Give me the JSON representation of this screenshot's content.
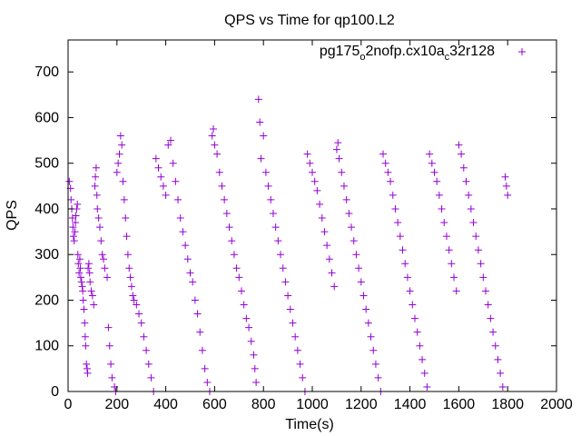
{
  "chart_data": {
    "type": "scatter",
    "title": "QPS vs Time for qp100.L2",
    "xlabel": "Time(s)",
    "ylabel": "QPS",
    "xlim": [
      0,
      2000
    ],
    "ylim": [
      0,
      770
    ],
    "xticks": [
      0,
      200,
      400,
      600,
      800,
      1000,
      1200,
      1400,
      1600,
      1800,
      2000
    ],
    "yticks": [
      0,
      100,
      200,
      300,
      400,
      500,
      600,
      700
    ],
    "grid": false,
    "legend_position": "top-right",
    "marker": "plus",
    "series_color": "#9400d3",
    "series": [
      {
        "name_parts": {
          "a": "pg175",
          "b": "o",
          "c": "2nofp.cx10a",
          "d": "c",
          "e": "32r128"
        },
        "points": [
          [
            5,
            460
          ],
          [
            10,
            445
          ],
          [
            12,
            420
          ],
          [
            15,
            400
          ],
          [
            18,
            380
          ],
          [
            20,
            360
          ],
          [
            22,
            340
          ],
          [
            25,
            330
          ],
          [
            28,
            350
          ],
          [
            30,
            370
          ],
          [
            32,
            385
          ],
          [
            35,
            400
          ],
          [
            38,
            410
          ],
          [
            40,
            300
          ],
          [
            42,
            280
          ],
          [
            45,
            260
          ],
          [
            48,
            290
          ],
          [
            50,
            270
          ],
          [
            52,
            250
          ],
          [
            55,
            240
          ],
          [
            58,
            230
          ],
          [
            60,
            220
          ],
          [
            62,
            200
          ],
          [
            65,
            180
          ],
          [
            68,
            150
          ],
          [
            70,
            120
          ],
          [
            72,
            100
          ],
          [
            75,
            60
          ],
          [
            78,
            50
          ],
          [
            80,
            40
          ],
          [
            82,
            270
          ],
          [
            85,
            280
          ],
          [
            88,
            260
          ],
          [
            90,
            240
          ],
          [
            95,
            220
          ],
          [
            100,
            210
          ],
          [
            105,
            190
          ],
          [
            110,
            450
          ],
          [
            112,
            470
          ],
          [
            115,
            490
          ],
          [
            118,
            430
          ],
          [
            120,
            400
          ],
          [
            125,
            380
          ],
          [
            130,
            360
          ],
          [
            135,
            330
          ],
          [
            140,
            300
          ],
          [
            145,
            290
          ],
          [
            150,
            270
          ],
          [
            160,
            250
          ],
          [
            165,
            140
          ],
          [
            170,
            100
          ],
          [
            175,
            60
          ],
          [
            180,
            30
          ],
          [
            190,
            10
          ],
          [
            195,
            0
          ],
          [
            200,
            480
          ],
          [
            205,
            500
          ],
          [
            210,
            520
          ],
          [
            215,
            560
          ],
          [
            220,
            540
          ],
          [
            225,
            460
          ],
          [
            230,
            420
          ],
          [
            235,
            380
          ],
          [
            240,
            340
          ],
          [
            245,
            300
          ],
          [
            250,
            270
          ],
          [
            255,
            250
          ],
          [
            260,
            230
          ],
          [
            265,
            210
          ],
          [
            270,
            200
          ],
          [
            280,
            190
          ],
          [
            290,
            170
          ],
          [
            300,
            150
          ],
          [
            310,
            120
          ],
          [
            320,
            90
          ],
          [
            330,
            60
          ],
          [
            340,
            30
          ],
          [
            350,
            0
          ],
          [
            360,
            510
          ],
          [
            370,
            490
          ],
          [
            380,
            470
          ],
          [
            390,
            450
          ],
          [
            400,
            430
          ],
          [
            410,
            540
          ],
          [
            420,
            550
          ],
          [
            430,
            500
          ],
          [
            440,
            460
          ],
          [
            450,
            420
          ],
          [
            460,
            380
          ],
          [
            470,
            350
          ],
          [
            480,
            320
          ],
          [
            490,
            290
          ],
          [
            500,
            260
          ],
          [
            510,
            240
          ],
          [
            520,
            200
          ],
          [
            530,
            170
          ],
          [
            540,
            130
          ],
          [
            550,
            90
          ],
          [
            560,
            50
          ],
          [
            570,
            20
          ],
          [
            580,
            0
          ],
          [
            590,
            560
          ],
          [
            595,
            575
          ],
          [
            600,
            540
          ],
          [
            610,
            520
          ],
          [
            620,
            480
          ],
          [
            630,
            450
          ],
          [
            640,
            420
          ],
          [
            650,
            390
          ],
          [
            660,
            360
          ],
          [
            670,
            330
          ],
          [
            680,
            300
          ],
          [
            690,
            270
          ],
          [
            700,
            250
          ],
          [
            710,
            220
          ],
          [
            720,
            190
          ],
          [
            730,
            160
          ],
          [
            740,
            140
          ],
          [
            750,
            110
          ],
          [
            760,
            80
          ],
          [
            765,
            50
          ],
          [
            770,
            20
          ],
          [
            780,
            640
          ],
          [
            785,
            590
          ],
          [
            790,
            510
          ],
          [
            800,
            560
          ],
          [
            810,
            480
          ],
          [
            820,
            450
          ],
          [
            830,
            420
          ],
          [
            840,
            390
          ],
          [
            850,
            360
          ],
          [
            860,
            330
          ],
          [
            870,
            300
          ],
          [
            880,
            270
          ],
          [
            890,
            240
          ],
          [
            900,
            210
          ],
          [
            910,
            180
          ],
          [
            920,
            150
          ],
          [
            930,
            120
          ],
          [
            940,
            90
          ],
          [
            950,
            60
          ],
          [
            960,
            30
          ],
          [
            970,
            0
          ],
          [
            980,
            520
          ],
          [
            990,
            500
          ],
          [
            1000,
            480
          ],
          [
            1010,
            460
          ],
          [
            1020,
            440
          ],
          [
            1030,
            410
          ],
          [
            1040,
            380
          ],
          [
            1050,
            350
          ],
          [
            1060,
            320
          ],
          [
            1070,
            290
          ],
          [
            1080,
            260
          ],
          [
            1090,
            230
          ],
          [
            1100,
            530
          ],
          [
            1105,
            545
          ],
          [
            1110,
            510
          ],
          [
            1120,
            480
          ],
          [
            1130,
            450
          ],
          [
            1140,
            420
          ],
          [
            1150,
            390
          ],
          [
            1160,
            360
          ],
          [
            1170,
            330
          ],
          [
            1180,
            300
          ],
          [
            1190,
            270
          ],
          [
            1200,
            240
          ],
          [
            1210,
            210
          ],
          [
            1220,
            180
          ],
          [
            1230,
            150
          ],
          [
            1240,
            120
          ],
          [
            1250,
            90
          ],
          [
            1260,
            60
          ],
          [
            1270,
            30
          ],
          [
            1280,
            0
          ],
          [
            1290,
            520
          ],
          [
            1300,
            500
          ],
          [
            1310,
            480
          ],
          [
            1320,
            460
          ],
          [
            1330,
            430
          ],
          [
            1340,
            400
          ],
          [
            1350,
            370
          ],
          [
            1360,
            340
          ],
          [
            1370,
            310
          ],
          [
            1380,
            280
          ],
          [
            1390,
            250
          ],
          [
            1400,
            220
          ],
          [
            1410,
            190
          ],
          [
            1420,
            160
          ],
          [
            1430,
            130
          ],
          [
            1440,
            100
          ],
          [
            1450,
            70
          ],
          [
            1460,
            40
          ],
          [
            1470,
            10
          ],
          [
            1480,
            520
          ],
          [
            1490,
            500
          ],
          [
            1500,
            480
          ],
          [
            1510,
            460
          ],
          [
            1520,
            430
          ],
          [
            1530,
            400
          ],
          [
            1540,
            370
          ],
          [
            1550,
            340
          ],
          [
            1560,
            310
          ],
          [
            1570,
            280
          ],
          [
            1580,
            250
          ],
          [
            1590,
            220
          ],
          [
            1600,
            540
          ],
          [
            1610,
            520
          ],
          [
            1620,
            490
          ],
          [
            1630,
            460
          ],
          [
            1640,
            430
          ],
          [
            1650,
            400
          ],
          [
            1660,
            370
          ],
          [
            1670,
            340
          ],
          [
            1680,
            310
          ],
          [
            1690,
            280
          ],
          [
            1700,
            250
          ],
          [
            1710,
            220
          ],
          [
            1720,
            190
          ],
          [
            1730,
            160
          ],
          [
            1740,
            130
          ],
          [
            1750,
            100
          ],
          [
            1760,
            70
          ],
          [
            1770,
            40
          ],
          [
            1780,
            10
          ],
          [
            1790,
            470
          ],
          [
            1795,
            450
          ],
          [
            1800,
            430
          ]
        ]
      }
    ]
  }
}
